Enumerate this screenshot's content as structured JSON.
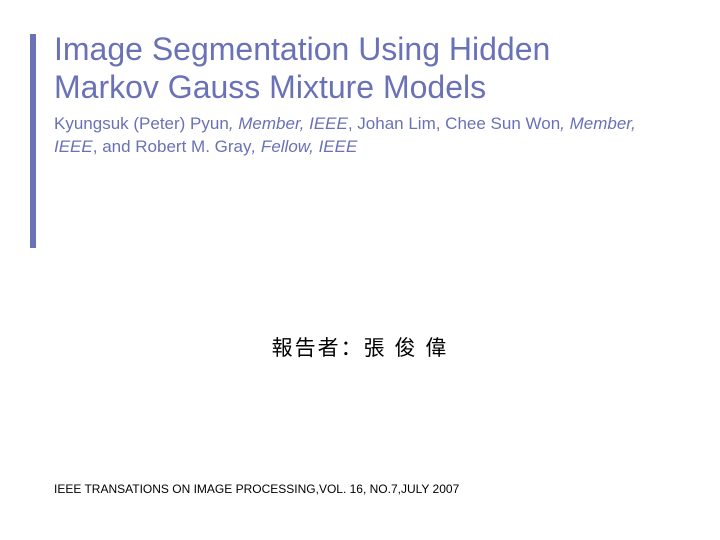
{
  "colors": {
    "accent": "#6A71B6",
    "title": "#6A71B6",
    "body": "#000000",
    "background": "#ffffff"
  },
  "typography": {
    "title_fontsize": 32,
    "authors_fontsize": 17,
    "presenter_fontsize": 21,
    "footer_fontsize": 12,
    "font_family": "Verdana"
  },
  "title": "Image Segmentation Using Hidden Markov Gauss Mixture Models",
  "authors": {
    "p1": "Kyungsuk (Peter) Pyun",
    "r1": ", Member, IEEE",
    "p2": ", Johan Lim, Chee Sun Won",
    "r2": ", Member, IEEE",
    "p3": ", and Robert M. Gray",
    "r3": ", Fellow, IEEE"
  },
  "presenter": "報告者：張 俊 偉",
  "footer": "IEEE TRANSATIONS ON IMAGE PROCESSING,VOL. 16, NO.7,JULY 2007"
}
